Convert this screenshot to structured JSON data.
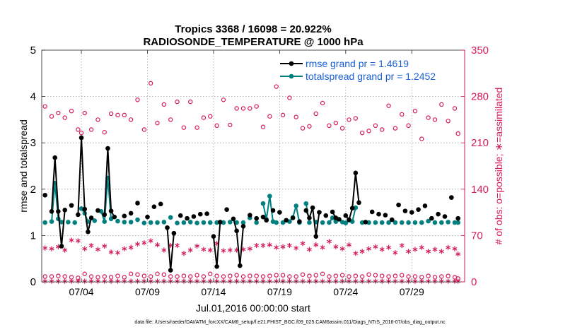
{
  "chart_data": {
    "type": "line",
    "title_line1": "Tropics 3368 / 16098 = 20.922%",
    "title_line2": "RADIOSONDE_TEMPERATURE @ 1000 hPa",
    "xlabel": "Jul.01,2016 00:00:00 start",
    "ylabel_left": "rmse and totalspread",
    "ylabel_right": "# of obs: o=possible; ∗=assimilated",
    "xlim": [
      0,
      32
    ],
    "ylim_left": [
      0,
      5
    ],
    "ylim_right": [
      0,
      350
    ],
    "x_ticks": [
      3,
      8,
      13,
      18,
      23,
      28
    ],
    "x_tick_labels": [
      "07/04",
      "07/09",
      "07/14",
      "07/19",
      "07/24",
      "07/29"
    ],
    "y_left_ticks": [
      "0",
      "1",
      "2",
      "3",
      "4",
      "5"
    ],
    "y_right_ticks": [
      "0",
      "70",
      "140",
      "210",
      "280",
      "350"
    ],
    "legend": {
      "rmse": "rmse grand pr = 1.4619",
      "spread": "totalspread grand pr = 1.2452"
    },
    "footnote": "data file: /Users/raeder/DAI/ATM_forcXX/CAM6_setup/f.e21.FHIST_BGC.f09_025.CAM6assim.011/Diags_NTrS_2016-07/obs_diag_output.nc",
    "colors": {
      "rmse": "#000000",
      "spread": "#008080",
      "obs": "#d6195c"
    },
    "series_rmse": [
      [
        0.25,
        1.87
      ],
      [
        0.75,
        1.52
      ],
      [
        1.0,
        2.68
      ],
      [
        1.25,
        1.52
      ],
      [
        1.5,
        0.77
      ],
      [
        1.75,
        1.55
      ],
      [
        2.25,
        1.65
      ],
      [
        2.75,
        1.45
      ],
      [
        3.0,
        3.11
      ],
      [
        3.25,
        1.57
      ],
      [
        3.5,
        1.08
      ],
      [
        3.75,
        1.38
      ],
      [
        4.25,
        1.54
      ],
      [
        4.75,
        1.45
      ],
      [
        5.0,
        2.88
      ],
      [
        5.25,
        1.53
      ],
      [
        5.5,
        1.4
      ],
      [
        6.25,
        1.42
      ],
      [
        6.75,
        1.48
      ],
      [
        7.25,
        1.7
      ],
      [
        8.0,
        1.4
      ],
      [
        8.5,
        1.62
      ],
      [
        9.0,
        1.68
      ],
      [
        9.5,
        1.17
      ],
      [
        9.75,
        0.25
      ],
      [
        10.0,
        1.05
      ],
      [
        10.5,
        1.43
      ],
      [
        11.0,
        1.37
      ],
      [
        11.5,
        1.41
      ],
      [
        12.0,
        1.46
      ],
      [
        12.5,
        1.47
      ],
      [
        13.0,
        0.98
      ],
      [
        13.25,
        0.33
      ],
      [
        13.5,
        1.29
      ],
      [
        14.0,
        1.56
      ],
      [
        14.5,
        1.36
      ],
      [
        14.75,
        1.1
      ],
      [
        15.0,
        0.35
      ],
      [
        15.25,
        1.2
      ],
      [
        15.75,
        1.44
      ],
      [
        16.25,
        1.37
      ],
      [
        16.75,
        1.4
      ],
      [
        17.0,
        1.33
      ],
      [
        17.5,
        1.54
      ],
      [
        18.0,
        1.5
      ],
      [
        18.5,
        1.33
      ],
      [
        19.0,
        1.38
      ],
      [
        19.5,
        1.3
      ],
      [
        20.0,
        1.54
      ],
      [
        20.25,
        1.38
      ],
      [
        20.5,
        1.6
      ],
      [
        20.75,
        0.98
      ],
      [
        21.0,
        1.5
      ],
      [
        21.5,
        1.43
      ],
      [
        22.0,
        1.51
      ],
      [
        22.25,
        1.38
      ],
      [
        22.5,
        1.35
      ],
      [
        23.0,
        1.43
      ],
      [
        23.25,
        1.34
      ],
      [
        23.5,
        1.59
      ],
      [
        23.75,
        2.35
      ],
      [
        24.0,
        1.71
      ],
      [
        24.5,
        1.29
      ],
      [
        25.0,
        1.51
      ],
      [
        25.5,
        1.46
      ],
      [
        26.0,
        1.44
      ],
      [
        26.5,
        1.34
      ],
      [
        27.0,
        1.66
      ],
      [
        27.5,
        1.53
      ],
      [
        28.0,
        1.5
      ],
      [
        28.5,
        1.56
      ],
      [
        29.0,
        1.64
      ],
      [
        29.5,
        1.37
      ],
      [
        30.0,
        1.46
      ],
      [
        30.5,
        1.41
      ],
      [
        31.0,
        1.82
      ],
      [
        31.5,
        1.37
      ]
    ],
    "series_spread": [
      [
        0.25,
        1.28
      ],
      [
        0.75,
        1.3
      ],
      [
        1.0,
        2.13
      ],
      [
        1.25,
        1.36
      ],
      [
        1.5,
        1.29
      ],
      [
        2.0,
        1.29
      ],
      [
        2.5,
        1.28
      ],
      [
        3.0,
        1.58
      ],
      [
        3.25,
        1.48
      ],
      [
        3.5,
        1.3
      ],
      [
        4.0,
        1.32
      ],
      [
        4.5,
        1.52
      ],
      [
        4.75,
        1.3
      ],
      [
        5.0,
        2.24
      ],
      [
        5.25,
        1.36
      ],
      [
        5.75,
        1.31
      ],
      [
        6.25,
        1.29
      ],
      [
        6.75,
        1.29
      ],
      [
        7.25,
        1.34
      ],
      [
        7.75,
        1.27
      ],
      [
        8.25,
        1.28
      ],
      [
        8.75,
        1.28
      ],
      [
        9.25,
        1.29
      ],
      [
        9.75,
        1.39
      ],
      [
        10.25,
        1.27
      ],
      [
        10.75,
        1.28
      ],
      [
        11.25,
        1.29
      ],
      [
        11.75,
        1.27
      ],
      [
        12.25,
        1.28
      ],
      [
        12.75,
        1.28
      ],
      [
        13.25,
        1.28
      ],
      [
        13.75,
        1.28
      ],
      [
        14.25,
        1.29
      ],
      [
        14.75,
        1.28
      ],
      [
        15.25,
        1.28
      ],
      [
        15.75,
        1.38
      ],
      [
        16.25,
        1.28
      ],
      [
        16.75,
        1.69
      ],
      [
        17.0,
        1.35
      ],
      [
        17.25,
        1.85
      ],
      [
        17.5,
        1.3
      ],
      [
        17.75,
        1.28
      ],
      [
        18.25,
        1.28
      ],
      [
        18.75,
        1.3
      ],
      [
        19.0,
        1.39
      ],
      [
        19.25,
        1.64
      ],
      [
        19.5,
        1.28
      ],
      [
        20.0,
        1.69
      ],
      [
        20.25,
        1.28
      ],
      [
        20.75,
        1.29
      ],
      [
        21.25,
        1.28
      ],
      [
        21.75,
        1.28
      ],
      [
        22.0,
        1.38
      ],
      [
        22.25,
        1.3
      ],
      [
        22.75,
        1.29
      ],
      [
        23.0,
        1.27
      ],
      [
        23.25,
        1.33
      ],
      [
        23.5,
        1.3
      ],
      [
        23.75,
        1.6
      ],
      [
        24.25,
        1.28
      ],
      [
        24.75,
        1.28
      ],
      [
        25.25,
        1.28
      ],
      [
        25.75,
        1.28
      ],
      [
        26.25,
        1.28
      ],
      [
        26.75,
        1.28
      ],
      [
        27.25,
        1.28
      ],
      [
        27.75,
        1.28
      ],
      [
        28.25,
        1.28
      ],
      [
        28.75,
        1.28
      ],
      [
        29.25,
        1.31
      ],
      [
        29.75,
        1.28
      ],
      [
        30.25,
        1.28
      ],
      [
        30.75,
        1.29
      ],
      [
        31.25,
        1.28
      ],
      [
        31.5,
        1.28
      ]
    ],
    "obs_possible_high": [
      [
        0.25,
        265
      ],
      [
        0.75,
        250
      ],
      [
        1.25,
        255
      ],
      [
        1.75,
        248
      ],
      [
        2.25,
        258
      ],
      [
        2.75,
        230
      ],
      [
        3.0,
        225
      ],
      [
        3.25,
        255
      ],
      [
        3.75,
        230
      ],
      [
        4.25,
        245
      ],
      [
        4.75,
        226
      ],
      [
        5.25,
        254
      ],
      [
        5.75,
        252
      ],
      [
        6.25,
        252
      ],
      [
        6.75,
        245
      ],
      [
        7.25,
        275
      ],
      [
        7.75,
        230
      ],
      [
        8.25,
        300
      ],
      [
        8.75,
        240
      ],
      [
        9.25,
        268
      ],
      [
        9.75,
        245
      ],
      [
        10.25,
        272
      ],
      [
        10.75,
        233
      ],
      [
        11.25,
        272
      ],
      [
        11.75,
        233
      ],
      [
        12.25,
        248
      ],
      [
        12.75,
        250
      ],
      [
        13.25,
        236
      ],
      [
        13.75,
        275
      ],
      [
        14.25,
        237
      ],
      [
        14.75,
        262
      ],
      [
        15.25,
        262
      ],
      [
        15.75,
        262
      ],
      [
        16.25,
        265
      ],
      [
        16.75,
        234
      ],
      [
        17.25,
        250
      ],
      [
        17.75,
        295
      ],
      [
        18.25,
        252
      ],
      [
        18.75,
        278
      ],
      [
        19.25,
        249
      ],
      [
        19.75,
        232
      ],
      [
        20.25,
        235
      ],
      [
        20.75,
        254
      ],
      [
        21.25,
        270
      ],
      [
        21.75,
        236
      ],
      [
        22.25,
        240
      ],
      [
        22.75,
        232
      ],
      [
        23.25,
        245
      ],
      [
        23.75,
        247
      ],
      [
        24.25,
        225
      ],
      [
        24.75,
        228
      ],
      [
        25.25,
        236
      ],
      [
        25.75,
        230
      ],
      [
        26.25,
        266
      ],
      [
        26.75,
        232
      ],
      [
        27.25,
        253
      ],
      [
        27.75,
        236
      ],
      [
        28.25,
        258
      ],
      [
        28.75,
        216
      ],
      [
        29.25,
        248
      ],
      [
        29.75,
        245
      ],
      [
        30.25,
        268
      ],
      [
        30.75,
        243
      ],
      [
        31.25,
        262
      ],
      [
        31.5,
        224
      ]
    ],
    "obs_possible_low": [
      [
        0.25,
        8
      ],
      [
        0.75,
        8
      ],
      [
        1.25,
        9
      ],
      [
        1.75,
        8
      ],
      [
        2.25,
        7
      ],
      [
        2.75,
        6
      ],
      [
        3.25,
        12
      ],
      [
        3.75,
        8
      ],
      [
        4.25,
        7
      ],
      [
        4.75,
        8
      ],
      [
        5.25,
        7
      ],
      [
        5.75,
        9
      ],
      [
        6.25,
        7
      ],
      [
        6.75,
        12
      ],
      [
        7.25,
        11
      ],
      [
        7.75,
        9
      ],
      [
        8.25,
        8
      ],
      [
        8.75,
        12
      ],
      [
        9.25,
        11
      ],
      [
        9.75,
        8
      ],
      [
        10.25,
        8
      ],
      [
        10.75,
        9
      ],
      [
        11.25,
        8
      ],
      [
        11.75,
        10
      ],
      [
        12.25,
        8
      ],
      [
        12.75,
        12
      ],
      [
        13.25,
        9
      ],
      [
        13.75,
        8
      ],
      [
        14.25,
        9
      ],
      [
        14.75,
        10
      ],
      [
        15.25,
        8
      ],
      [
        15.75,
        9
      ],
      [
        16.25,
        9
      ],
      [
        16.75,
        8
      ],
      [
        17.25,
        9
      ],
      [
        17.75,
        10
      ],
      [
        18.25,
        10
      ],
      [
        18.75,
        8
      ],
      [
        19.25,
        8
      ],
      [
        19.75,
        11
      ],
      [
        20.25,
        9
      ],
      [
        20.75,
        10
      ],
      [
        21.25,
        12
      ],
      [
        21.75,
        8
      ],
      [
        22.25,
        9
      ],
      [
        22.75,
        10
      ],
      [
        23.25,
        8
      ],
      [
        23.75,
        9
      ],
      [
        24.25,
        8
      ],
      [
        24.75,
        11
      ],
      [
        25.25,
        10
      ],
      [
        25.75,
        9
      ],
      [
        26.25,
        8
      ],
      [
        26.75,
        9
      ],
      [
        27.25,
        10
      ],
      [
        27.75,
        8
      ],
      [
        28.25,
        8
      ],
      [
        28.75,
        7
      ],
      [
        29.25,
        9
      ],
      [
        29.75,
        7
      ],
      [
        30.25,
        8
      ],
      [
        30.75,
        9
      ],
      [
        31.25,
        7
      ],
      [
        31.5,
        5
      ]
    ],
    "obs_assimilated_high": [
      [
        0.25,
        51
      ],
      [
        0.75,
        50
      ],
      [
        1.25,
        53
      ],
      [
        1.75,
        48
      ],
      [
        2.25,
        63
      ],
      [
        2.75,
        62
      ],
      [
        3.25,
        50
      ],
      [
        3.75,
        55
      ],
      [
        4.25,
        49
      ],
      [
        4.75,
        54
      ],
      [
        5.25,
        45
      ],
      [
        5.75,
        44
      ],
      [
        6.25,
        50
      ],
      [
        6.75,
        52
      ],
      [
        7.25,
        57
      ],
      [
        7.75,
        59
      ],
      [
        8.25,
        62
      ],
      [
        8.75,
        56
      ],
      [
        9.25,
        48
      ],
      [
        9.75,
        55
      ],
      [
        10.25,
        55
      ],
      [
        10.75,
        43
      ],
      [
        11.25,
        48
      ],
      [
        11.75,
        54
      ],
      [
        12.25,
        49
      ],
      [
        12.75,
        48
      ],
      [
        13.25,
        58
      ],
      [
        13.75,
        47
      ],
      [
        14.25,
        48
      ],
      [
        14.75,
        48
      ],
      [
        15.25,
        49
      ],
      [
        15.75,
        50
      ],
      [
        16.25,
        55
      ],
      [
        16.75,
        55
      ],
      [
        17.25,
        56
      ],
      [
        17.75,
        52
      ],
      [
        18.25,
        53
      ],
      [
        18.75,
        55
      ],
      [
        19.25,
        51
      ],
      [
        19.75,
        58
      ],
      [
        20.25,
        49
      ],
      [
        20.75,
        56
      ],
      [
        21.25,
        52
      ],
      [
        21.75,
        61
      ],
      [
        22.25,
        53
      ],
      [
        22.75,
        50
      ],
      [
        23.25,
        56
      ],
      [
        23.75,
        43
      ],
      [
        24.25,
        46
      ],
      [
        24.75,
        50
      ],
      [
        25.25,
        53
      ],
      [
        25.75,
        49
      ],
      [
        26.25,
        52
      ],
      [
        26.75,
        44
      ],
      [
        27.25,
        55
      ],
      [
        27.75,
        46
      ],
      [
        28.25,
        49
      ],
      [
        28.75,
        52
      ],
      [
        29.25,
        46
      ],
      [
        29.75,
        49
      ],
      [
        30.25,
        46
      ],
      [
        30.75,
        52
      ],
      [
        31.25,
        50
      ],
      [
        31.5,
        42
      ]
    ],
    "obs_assimilated_low": [
      [
        0.25,
        1
      ],
      [
        0.75,
        1
      ],
      [
        1.25,
        1
      ],
      [
        1.75,
        1
      ],
      [
        2.25,
        1
      ],
      [
        2.75,
        1
      ],
      [
        3.25,
        1
      ],
      [
        3.75,
        1
      ],
      [
        4.25,
        1
      ],
      [
        4.75,
        1
      ],
      [
        5.25,
        1
      ],
      [
        5.75,
        1
      ],
      [
        6.25,
        1
      ],
      [
        6.75,
        1
      ],
      [
        7.25,
        1
      ],
      [
        7.75,
        1
      ],
      [
        8.25,
        1
      ],
      [
        8.75,
        1
      ],
      [
        9.25,
        1
      ],
      [
        9.75,
        1
      ],
      [
        10.25,
        1
      ],
      [
        10.75,
        1
      ],
      [
        11.25,
        1
      ],
      [
        11.75,
        1
      ],
      [
        12.25,
        1
      ],
      [
        12.75,
        1
      ],
      [
        13.25,
        1
      ],
      [
        13.75,
        1
      ],
      [
        14.25,
        1
      ],
      [
        14.75,
        1
      ],
      [
        15.25,
        1
      ],
      [
        15.75,
        1
      ],
      [
        16.25,
        1
      ],
      [
        16.75,
        1
      ],
      [
        17.25,
        1
      ],
      [
        17.75,
        1
      ],
      [
        18.25,
        1
      ],
      [
        18.75,
        1
      ],
      [
        19.25,
        1
      ],
      [
        19.75,
        1
      ],
      [
        20.25,
        1
      ],
      [
        20.75,
        1
      ],
      [
        21.25,
        1
      ],
      [
        21.75,
        1
      ],
      [
        22.25,
        1
      ],
      [
        22.75,
        1
      ],
      [
        23.25,
        1
      ],
      [
        23.75,
        1
      ],
      [
        24.25,
        1
      ],
      [
        24.75,
        1
      ],
      [
        25.25,
        1
      ],
      [
        25.75,
        1
      ],
      [
        26.25,
        1
      ],
      [
        26.75,
        1
      ],
      [
        27.25,
        1
      ],
      [
        27.75,
        1
      ],
      [
        28.25,
        1
      ],
      [
        28.75,
        1
      ],
      [
        29.25,
        1
      ],
      [
        29.75,
        1
      ],
      [
        30.25,
        1
      ],
      [
        30.75,
        1
      ],
      [
        31.25,
        1
      ],
      [
        31.5,
        1
      ]
    ]
  }
}
